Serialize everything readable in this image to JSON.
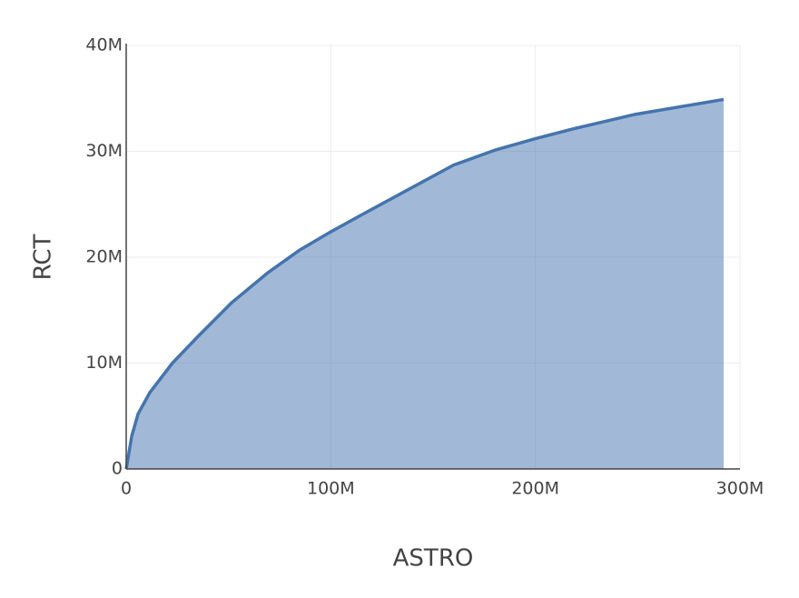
{
  "chart_data": {
    "type": "area",
    "x_label": "ASTRO",
    "y_label": "RCT",
    "x": [
      0,
      2700000,
      5800000,
      11500000,
      22600000,
      35000000,
      51500000,
      69000000,
      85000000,
      100000000,
      116000000,
      138000000,
      160000000,
      180000000,
      200000000,
      218000000,
      249000000,
      292000000
    ],
    "series": [
      {
        "name": "RCT",
        "color": "#4474ae",
        "values": [
          0,
          3100000,
          5200000,
          7200000,
          10000000,
          12500000,
          15700000,
          18500000,
          20700000,
          22400000,
          24100000,
          26400000,
          28700000,
          30100000,
          31200000,
          32100000,
          33500000,
          34900000
        ]
      }
    ],
    "xlim": [
      0,
      300000000
    ],
    "ylim": [
      0,
      40000000
    ],
    "xticks": [
      0,
      {
        "value": 100000000,
        "label": "100M"
      },
      {
        "value": 200000000,
        "label": "200M"
      },
      {
        "value": 300000000,
        "label": "300M"
      }
    ],
    "yticks": [
      0,
      {
        "value": 10000000,
        "label": "10M"
      },
      {
        "value": 20000000,
        "label": "20M"
      },
      {
        "value": 30000000,
        "label": "30M"
      },
      {
        "value": 40000000,
        "label": "40M"
      }
    ],
    "grid": true
  }
}
